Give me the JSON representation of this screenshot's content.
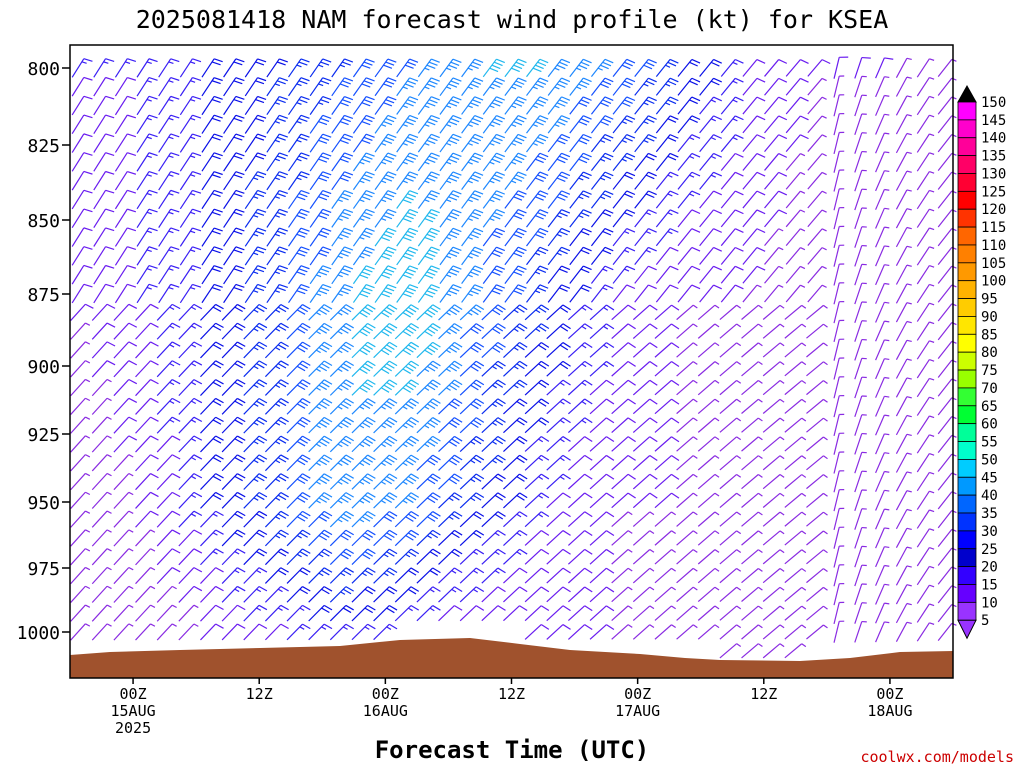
{
  "chart_data": {
    "type": "wind-barb-time-height",
    "title": "2025081418 NAM forecast wind profile (kt) for KSEA",
    "xlabel": "Forecast Time (UTC)",
    "ylabel": "",
    "y_ticks": [
      "800",
      "825",
      "850",
      "875",
      "900",
      "925",
      "950",
      "975",
      "1000"
    ],
    "x_ticks": [
      {
        "hour": 6,
        "l1": "00Z",
        "l2": "15AUG",
        "l3": "2025"
      },
      {
        "hour": 18,
        "l1": "12Z",
        "l2": "",
        "l3": ""
      },
      {
        "hour": 30,
        "l1": "00Z",
        "l2": "16AUG",
        "l3": ""
      },
      {
        "hour": 42,
        "l1": "12Z",
        "l2": "",
        "l3": ""
      },
      {
        "hour": 54,
        "l1": "00Z",
        "l2": "17AUG",
        "l3": ""
      },
      {
        "hour": 66,
        "l1": "12Z",
        "l2": "",
        "l3": ""
      },
      {
        "hour": 78,
        "l1": "00Z",
        "l2": "18AUG",
        "l3": ""
      }
    ],
    "x_range_hours": [
      0,
      84
    ],
    "colorbar": {
      "labels": [
        "150",
        "145",
        "140",
        "135",
        "130",
        "125",
        "120",
        "115",
        "110",
        "105",
        "100",
        "95",
        "90",
        "85",
        "80",
        "75",
        "70",
        "65",
        "60",
        "55",
        "50",
        "45",
        "40",
        "35",
        "30",
        "25",
        "20",
        "15",
        "10",
        "5"
      ],
      "colors": [
        "#000000",
        "#ff00ff",
        "#ff00cc",
        "#ff0099",
        "#ff0066",
        "#ff0033",
        "#ff0000",
        "#ff3300",
        "#ff6600",
        "#ff8000",
        "#ff9900",
        "#ffb300",
        "#ffcc00",
        "#ffe600",
        "#ffff00",
        "#ccff00",
        "#99ff00",
        "#33ff33",
        "#00ff33",
        "#00ff99",
        "#00ffcc",
        "#00ccff",
        "#0099ff",
        "#0066ff",
        "#0033ff",
        "#0000ff",
        "#0000cc",
        "#3300ff",
        "#6600ff",
        "#9933ff"
      ]
    },
    "terrain_color": "#a0522d",
    "footer": "coolwx.com/models",
    "speed_samples_kt": [
      {
        "level": "800",
        "values": [
          15,
          15,
          20,
          25,
          30,
          35,
          40,
          40,
          35,
          25,
          15,
          10,
          10,
          5
        ]
      },
      {
        "level": "875",
        "values": [
          10,
          15,
          20,
          30,
          40,
          45,
          35,
          25,
          15,
          10,
          10,
          5,
          5,
          5
        ]
      },
      {
        "level": "950",
        "values": [
          5,
          10,
          20,
          30,
          40,
          35,
          25,
          15,
          10,
          10,
          5,
          5,
          5,
          5
        ]
      },
      {
        "level": "1000",
        "values": [
          5,
          5,
          10,
          15,
          20,
          15,
          10,
          10,
          10,
          5,
          5,
          5,
          5,
          5
        ]
      }
    ]
  }
}
